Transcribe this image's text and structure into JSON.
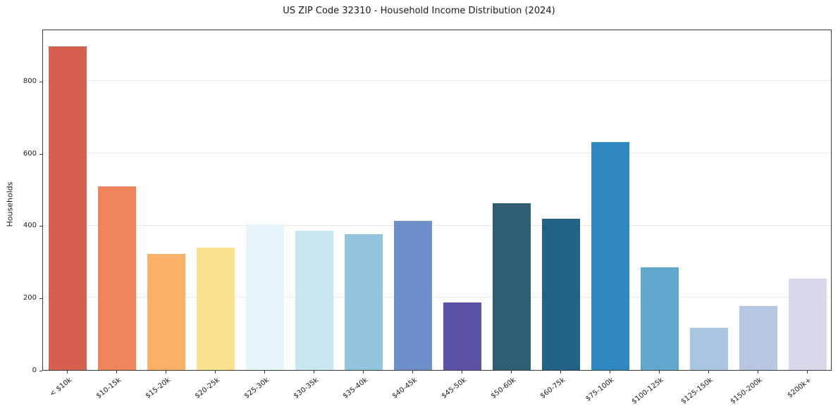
{
  "page": {
    "background": "#ffffff"
  },
  "chart_data": {
    "type": "bar",
    "title": "US ZIP Code 32310 - Household Income Distribution (2024)",
    "xlabel": "",
    "ylabel": "Households",
    "categories": [
      "< $10k",
      "$10-15k",
      "$15-20k",
      "$20-25k",
      "$25-30k",
      "$30-35k",
      "$35-40k",
      "$40-45k",
      "$45-50k",
      "$50-60k",
      "$60-75k",
      "$75-100k",
      "$100-125k",
      "$125-150k",
      "$150-200k",
      "$200k+"
    ],
    "values": [
      895,
      508,
      322,
      338,
      403,
      386,
      375,
      412,
      186,
      461,
      419,
      630,
      284,
      117,
      178,
      253
    ],
    "colors": [
      "#d65f4f",
      "#f0825c",
      "#fbb267",
      "#fbe18e",
      "#e6f5f7",
      "#c7e6ef",
      "#93c4de",
      "#6e8fca",
      "#5a52a5",
      "#2f5d73",
      "#226286",
      "#2f87bf",
      "#61a7cb",
      "#a9c6e1",
      "#b7c7e2",
      "#d7d8e9"
    ],
    "ylim": [
      0,
      944
    ],
    "yticks": [
      0,
      200,
      400,
      600,
      800
    ],
    "grid": true,
    "legend": null,
    "bar_color_axis_frame": "#3a3a3a",
    "gridline_color": "#e7e7e7"
  }
}
